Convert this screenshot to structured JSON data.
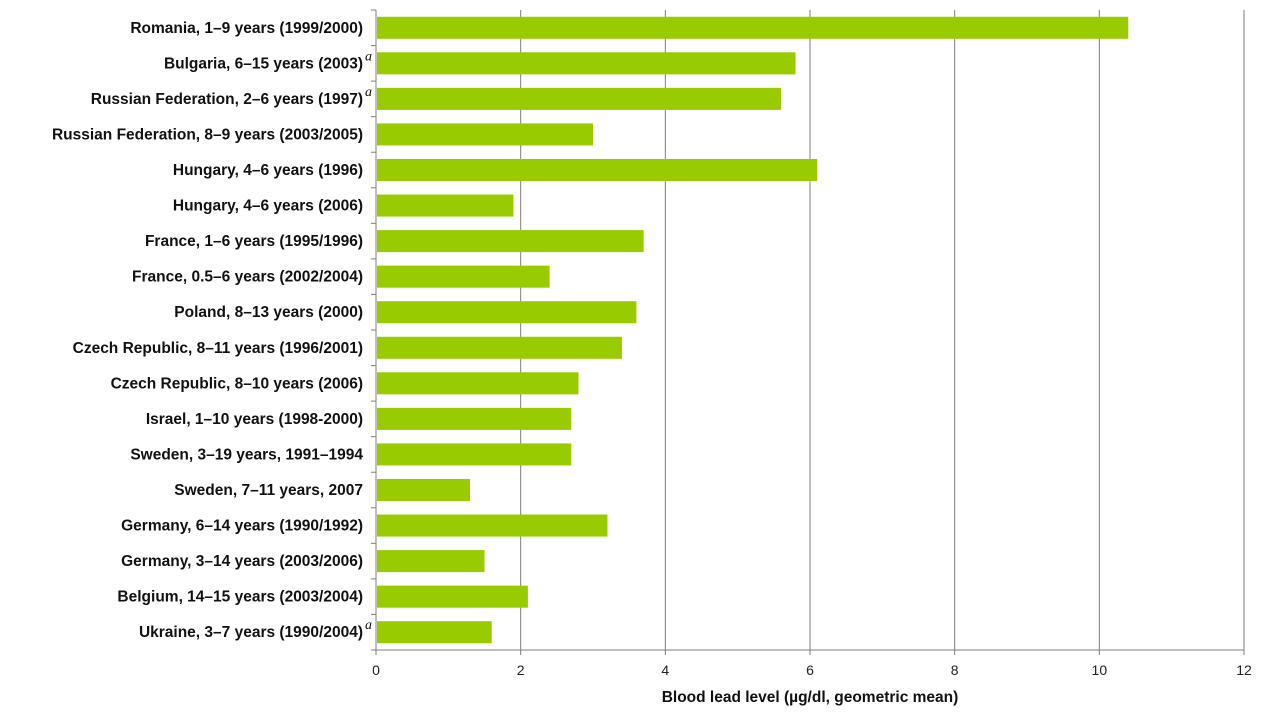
{
  "chart_data": {
    "type": "bar",
    "orientation": "horizontal",
    "categories": [
      "Romania, 1–9 years (1999/2000)",
      "Bulgaria, 6–15 years (2003)",
      "Russian Federation, 2–6 years (1997)",
      "Russian Federation, 8–9 years (2003/2005)",
      "Hungary, 4–6 years (1996)",
      "Hungary, 4–6 years (2006)",
      "France, 1–6 years (1995/1996)",
      "France, 0.5–6 years (2002/2004)",
      "Poland, 8–13 years (2000)",
      "Czech Republic, 8–11 years (1996/2001)",
      "Czech Republic, 8–10 years (2006)",
      "Israel, 1–10 years (1998-2000)",
      "Sweden, 3–19 years, 1991–1994",
      "Sweden, 7–11 years, 2007",
      "Germany, 6–14 years (1990/1992)",
      "Germany, 3–14 years (2003/2006)",
      "Belgium, 14–15 years (2003/2004)",
      "Ukraine, 3–7 years (1990/2004)"
    ],
    "values": [
      10.4,
      5.8,
      5.6,
      3.0,
      6.1,
      1.9,
      3.7,
      2.4,
      3.6,
      3.4,
      2.8,
      2.7,
      2.7,
      1.3,
      3.2,
      1.5,
      2.1,
      1.6
    ],
    "footnotes": [
      "",
      "a",
      "a",
      "",
      "",
      "",
      "",
      "",
      "",
      "",
      "",
      "",
      "",
      "",
      "",
      "",
      "",
      "a"
    ],
    "xlabel": "Blood lead level (µg/dl, geometric mean)",
    "ylabel": "",
    "title": "",
    "xlim": [
      0,
      12
    ],
    "xticks": [
      0,
      2,
      4,
      6,
      8,
      10,
      12
    ],
    "grid": "vertical",
    "bar_color": "#99cc00",
    "grid_color": "#7f7f7f"
  }
}
